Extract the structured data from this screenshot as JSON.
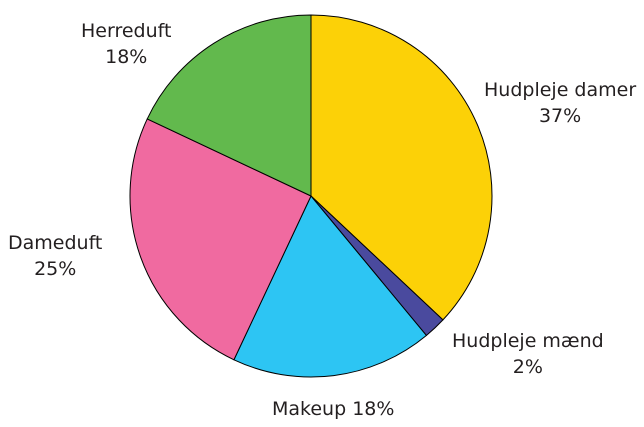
{
  "chart_data": {
    "type": "pie",
    "title": "",
    "slices": [
      {
        "label": "Hudpleje damer",
        "value": 37,
        "pct_label": "37%",
        "color": "#fcd107"
      },
      {
        "label": "Hudpleje mænd",
        "value": 2,
        "pct_label": "2%",
        "color": "#4a4a9e"
      },
      {
        "label": "Makeup",
        "value": 18,
        "pct_label": "18%",
        "color": "#2dc5f3"
      },
      {
        "label": "Dameduft",
        "value": 25,
        "pct_label": "25%",
        "color": "#f06aa0"
      },
      {
        "label": "Herreduft",
        "value": 18,
        "pct_label": "18%",
        "color": "#62b94d"
      }
    ],
    "legend": "none",
    "border_color": "#000000"
  }
}
